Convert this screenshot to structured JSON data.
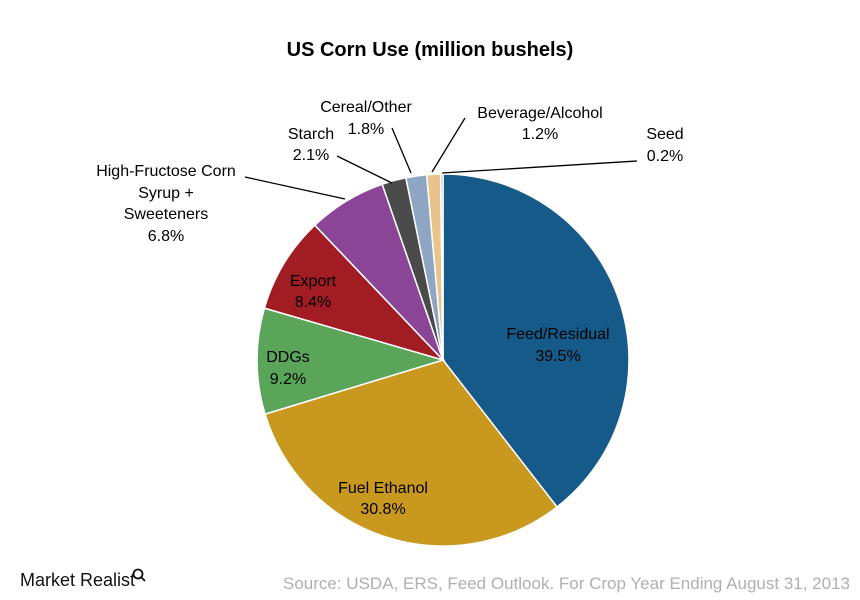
{
  "chart_data": {
    "type": "pie",
    "title": "US Corn Use (million bushels)",
    "start": "12 o'clock, clockwise",
    "slices": [
      {
        "label": "Feed/Residual",
        "value": 39.5,
        "display": "39.5%",
        "color": "#155a88"
      },
      {
        "label": "Fuel Ethanol",
        "value": 30.8,
        "display": "30.8%",
        "color": "#c9981f"
      },
      {
        "label": "DDGs",
        "value": 9.2,
        "display": "9.2%",
        "color": "#5ba55a"
      },
      {
        "label": "Export",
        "value": 8.4,
        "display": "8.4%",
        "color": "#a11c23"
      },
      {
        "label": "High-Fructose Corn Syrup + Sweeteners",
        "value": 6.8,
        "display": "6.8%",
        "color": "#8b4596"
      },
      {
        "label": "Starch",
        "value": 2.1,
        "display": "2.1%",
        "color": "#4a4a4a"
      },
      {
        "label": "Cereal/Other",
        "value": 1.8,
        "display": "1.8%",
        "color": "#8ea6c4"
      },
      {
        "label": "Beverage/Alcohol",
        "value": 1.2,
        "display": "1.2%",
        "color": "#e8c48c"
      },
      {
        "label": "Seed",
        "value": 0.2,
        "display": "0.2%",
        "color": "#9fc4c4"
      }
    ],
    "hfcs_label_lines": [
      "High-Fructose Corn",
      "Syrup +",
      "Sweeteners"
    ]
  },
  "source": "Source: USDA, ERS, Feed Outlook. For Crop Year Ending August 31, 2013",
  "logo": "Market Realist"
}
